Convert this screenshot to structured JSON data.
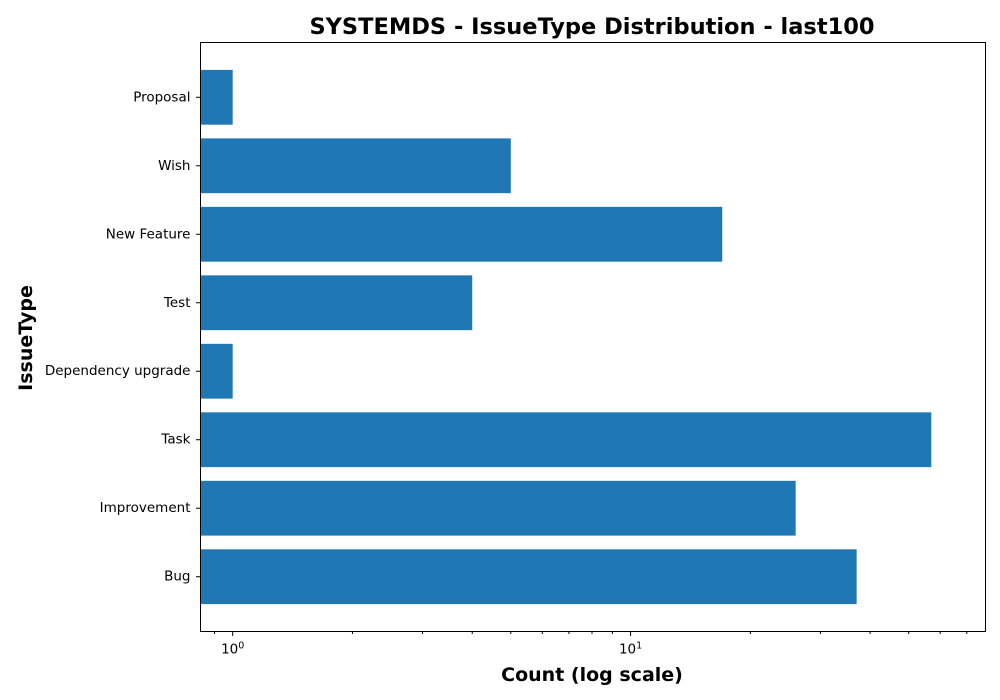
{
  "chart_data": {
    "type": "bar",
    "orientation": "horizontal",
    "title": "SYSTEMDS - IssueType Distribution - last100",
    "xlabel": "Count (log scale)",
    "ylabel": "IssueType",
    "xscale": "log",
    "xlim": [
      0.83,
      78
    ],
    "grid": false,
    "color": "#1f77b4",
    "categories": [
      "Bug",
      "Improvement",
      "Task",
      "Dependency upgrade",
      "Test",
      "New Feature",
      "Wish",
      "Proposal"
    ],
    "values": [
      37,
      26,
      57,
      1,
      4,
      17,
      5,
      1
    ],
    "xticks": [
      {
        "value": 1,
        "base": "10",
        "exp": "0"
      },
      {
        "value": 10,
        "base": "10",
        "exp": "1"
      }
    ]
  }
}
